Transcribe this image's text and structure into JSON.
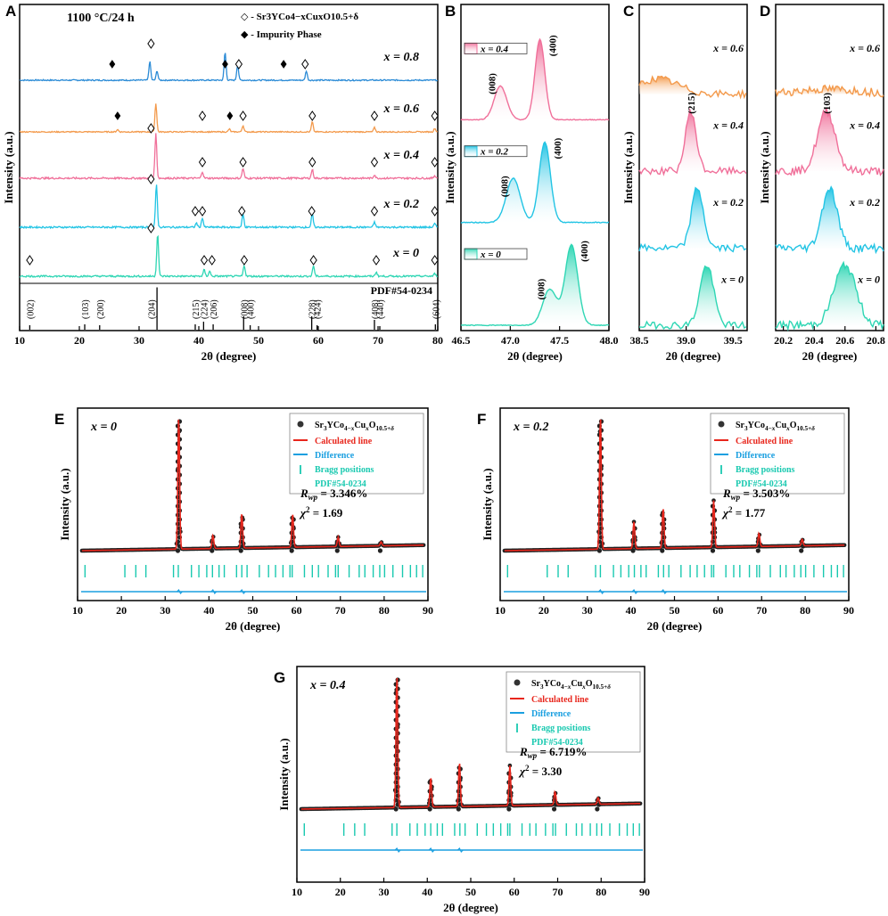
{
  "colors": {
    "x0": "#2fd6b4",
    "x02": "#22c4e4",
    "x04": "#f0709a",
    "x06": "#f39a4c",
    "x08": "#2b8bd6",
    "calc": "#e8261c",
    "diff": "#1a9fe0",
    "bragg": "#19c9b0",
    "obs": "#111111"
  },
  "chart_data": [
    {
      "panel": "A",
      "type": "line",
      "title": "1100 °C/24 h",
      "xlabel": "2θ (degree)",
      "ylabel": "Intensity (a.u.)",
      "xlim": [
        10,
        80
      ],
      "xticks": [
        10,
        20,
        30,
        40,
        50,
        60,
        70,
        80
      ],
      "legend": {
        "phase": "◇ - Sr3YCo4−xCuxO10.5+δ",
        "impurity": "◆ - Impurity Phase"
      },
      "series": [
        {
          "name": "x = 0.8",
          "color_key": "x08",
          "peaks": [
            [
              31.8,
              0.6
            ],
            [
              33.0,
              0.3
            ],
            [
              44.4,
              0.9
            ],
            [
              46.5,
              0.5
            ],
            [
              58.0,
              0.3
            ]
          ],
          "phase_markers": [
            32.0,
            46.7,
            57.8
          ],
          "impurity_markers": [
            25.5,
            44.4,
            54.2
          ]
        },
        {
          "name": "x = 0.6",
          "color_key": "x06",
          "peaks": [
            [
              32.8,
              1.0
            ],
            [
              26.4,
              0.08
            ],
            [
              45.1,
              0.1
            ],
            [
              47.4,
              0.22
            ],
            [
              59.0,
              0.35
            ],
            [
              69.4,
              0.15
            ],
            [
              79.5,
              0.12
            ]
          ],
          "phase_markers": [
            40.6,
            47.4,
            59.0,
            69.4,
            79.5
          ],
          "impurity_markers": [
            26.4,
            45.2
          ]
        },
        {
          "name": "x = 0.4",
          "color_key": "x04",
          "peaks": [
            [
              32.8,
              1.0
            ],
            [
              40.6,
              0.15
            ],
            [
              47.4,
              0.22
            ],
            [
              59.0,
              0.2
            ],
            [
              69.4,
              0.08
            ],
            [
              79.5,
              0.06
            ]
          ],
          "phase_markers": [
            32.0,
            40.6,
            47.4,
            59.0,
            69.4,
            79.5
          ],
          "impurity_markers": []
        },
        {
          "name": "x = 0.2",
          "color_key": "x02",
          "peaks": [
            [
              32.9,
              1.0
            ],
            [
              39.6,
              0.1
            ],
            [
              40.6,
              0.22
            ],
            [
              47.4,
              0.3
            ],
            [
              59.0,
              0.32
            ],
            [
              69.4,
              0.12
            ],
            [
              79.5,
              0.08
            ]
          ],
          "phase_markers": [
            32.0,
            39.4,
            40.6,
            47.2,
            58.9,
            69.4,
            79.5
          ],
          "impurity_markers": []
        },
        {
          "name": "x = 0",
          "color_key": "x0",
          "peaks": [
            [
              33.1,
              1.0
            ],
            [
              40.9,
              0.15
            ],
            [
              41.8,
              0.12
            ],
            [
              47.6,
              0.25
            ],
            [
              59.2,
              0.25
            ],
            [
              69.7,
              0.1
            ],
            [
              79.5,
              0.06
            ]
          ],
          "phase_markers": [
            11.7,
            32.0,
            40.9,
            42.2,
            47.6,
            59.2,
            69.7,
            79.5
          ],
          "impurity_markers": []
        }
      ],
      "reference": {
        "name": "PDF#54-0234",
        "sticks": [
          [
            11.7,
            0.1
          ],
          [
            20.9,
            0.12
          ],
          [
            23.4,
            0.1
          ],
          [
            33.0,
            0.95
          ],
          [
            39.4,
            0.12
          ],
          [
            40.8,
            0.18
          ],
          [
            42.4,
            0.12
          ],
          [
            47.5,
            0.3
          ],
          [
            48.6,
            0.1
          ],
          [
            58.9,
            0.3
          ],
          [
            59.8,
            0.1
          ],
          [
            69.4,
            0.22
          ],
          [
            70.3,
            0.08
          ],
          [
            79.6,
            0.12
          ]
        ],
        "hkl": [
          "(002)",
          "(103)",
          "(200)",
          "(204)",
          "(215)",
          "(224)",
          "(206)",
          "(008)",
          "(400)",
          "(228)",
          "(424)",
          "(408)",
          "(440)",
          "(604)"
        ],
        "hkl_pos": [
          11.7,
          20.9,
          23.4,
          32.0,
          39.4,
          40.8,
          42.4,
          47.5,
          48.6,
          58.9,
          59.8,
          69.4,
          70.3,
          79.6
        ]
      }
    },
    {
      "panel": "B",
      "type": "area",
      "xlabel": "2θ (degree)",
      "ylabel": "Intensity (a.u.)",
      "xlim": [
        46.5,
        48.0
      ],
      "xticks": [
        46.5,
        47.0,
        47.5,
        48.0
      ],
      "peak_labels": [
        "(008)",
        "(400)"
      ],
      "series": [
        {
          "name": "x = 0.4",
          "color_key": "x04",
          "peaks": [
            [
              46.9,
              0.42,
              0.09
            ],
            [
              47.3,
              1.0,
              0.07
            ]
          ]
        },
        {
          "name": "x = 0.2",
          "color_key": "x02",
          "peaks": [
            [
              47.03,
              0.55,
              0.1
            ],
            [
              47.35,
              1.0,
              0.08
            ]
          ]
        },
        {
          "name": "x = 0",
          "color_key": "x0",
          "peaks": [
            [
              47.4,
              0.45,
              0.1
            ],
            [
              47.62,
              1.0,
              0.09
            ]
          ]
        }
      ]
    },
    {
      "panel": "C",
      "type": "area",
      "xlabel": "2θ (degree)",
      "ylabel": "Intensity (a.u.)",
      "xlim": [
        38.5,
        39.65
      ],
      "xticks": [
        38.5,
        39.0,
        39.5
      ],
      "peak_label": "(215)",
      "series": [
        {
          "name": "x = 0.6",
          "color_key": "x06",
          "center": 38.7,
          "height": 0.25,
          "width": 0.3
        },
        {
          "name": "x = 0.4",
          "color_key": "x04",
          "center": 39.05,
          "height": 1.0,
          "width": 0.08
        },
        {
          "name": "x = 0.2",
          "color_key": "x02",
          "center": 39.12,
          "height": 1.0,
          "width": 0.09
        },
        {
          "name": "x = 0",
          "color_key": "x0",
          "center": 39.22,
          "height": 1.0,
          "width": 0.1
        }
      ]
    },
    {
      "panel": "D",
      "type": "area",
      "xlabel": "2θ (degree)",
      "ylabel": "Intensity (a.u.)",
      "xlim": [
        20.15,
        20.85
      ],
      "xticks": [
        20.2,
        20.4,
        20.6,
        20.8
      ],
      "peak_label": "(103)",
      "series": [
        {
          "name": "x = 0.6",
          "color_key": "x06",
          "center": 20.5,
          "height": 0.08,
          "width": 0.3
        },
        {
          "name": "x = 0.4",
          "color_key": "x04",
          "center": 20.48,
          "height": 1.0,
          "width": 0.08
        },
        {
          "name": "x = 0.2",
          "color_key": "x02",
          "center": 20.5,
          "height": 1.0,
          "width": 0.07
        },
        {
          "name": "x = 0",
          "color_key": "x0",
          "center": 20.6,
          "height": 1.0,
          "width": 0.1
        }
      ]
    },
    {
      "panel": "E",
      "type": "line",
      "label": "x = 0",
      "xlabel": "2θ (degree)",
      "ylabel": "Intensity (a.u.)",
      "xlim": [
        10,
        90
      ],
      "xticks": [
        10,
        20,
        30,
        40,
        50,
        60,
        70,
        80,
        90
      ],
      "legend": [
        "Sr3YCo4−xCuxO10.5+δ",
        "Calculated line",
        "Difference",
        "Bragg positions",
        "PDF#54-0234"
      ],
      "rwp": "3.346%",
      "chi2": "1.69",
      "peaks": [
        [
          33.1,
          1.0
        ],
        [
          40.9,
          0.1
        ],
        [
          47.5,
          0.26
        ],
        [
          59.1,
          0.25
        ],
        [
          69.5,
          0.07
        ],
        [
          79.3,
          0.03
        ]
      ]
    },
    {
      "panel": "F",
      "type": "line",
      "label": "x = 0.2",
      "xlabel": "2θ (degree)",
      "ylabel": "Intensity (a.u.)",
      "xlim": [
        10,
        90
      ],
      "xticks": [
        10,
        20,
        30,
        40,
        50,
        60,
        70,
        80,
        90
      ],
      "legend": [
        "Sr3YCo4−xCuxO10.5+δ",
        "Calculated line",
        "Difference",
        "Bragg positions",
        "PDF#54-0234"
      ],
      "rwp": "3.503%",
      "chi2": "1.77",
      "peaks": [
        [
          33.0,
          1.0
        ],
        [
          40.7,
          0.2
        ],
        [
          47.4,
          0.3
        ],
        [
          59.0,
          0.35
        ],
        [
          69.4,
          0.1
        ],
        [
          79.3,
          0.05
        ]
      ]
    },
    {
      "panel": "G",
      "type": "line",
      "label": "x = 0.4",
      "xlabel": "2θ (degree)",
      "ylabel": "Intensity (a.u.)",
      "xlim": [
        10,
        90
      ],
      "xticks": [
        10,
        20,
        30,
        40,
        50,
        60,
        70,
        80,
        90
      ],
      "legend": [
        "Sr3YCo4−xCuxO10.5+δ",
        "Calculated line",
        "Difference",
        "Bragg positions",
        "PDF#54-0234"
      ],
      "rwp": "6.719%",
      "chi2": "3.30",
      "peaks": [
        [
          33.0,
          1.0
        ],
        [
          40.8,
          0.22
        ],
        [
          47.4,
          0.33
        ],
        [
          59.0,
          0.3
        ],
        [
          69.4,
          0.1
        ],
        [
          79.3,
          0.05
        ]
      ]
    }
  ],
  "bragg_positions": [
    11.7,
    20.8,
    23.3,
    25.6,
    31.9,
    33.0,
    36.0,
    37.7,
    39.5,
    40.8,
    42.3,
    43.5,
    46.3,
    47.5,
    48.7,
    51.5,
    53.6,
    55.2,
    56.9,
    58.5,
    59.0,
    61.8,
    63.6,
    65.0,
    67.2,
    68.9,
    69.5,
    72.0,
    74.3,
    75.6,
    77.5,
    79.0,
    80.1,
    82.0,
    84.2,
    86.0,
    87.4,
    88.8
  ]
}
